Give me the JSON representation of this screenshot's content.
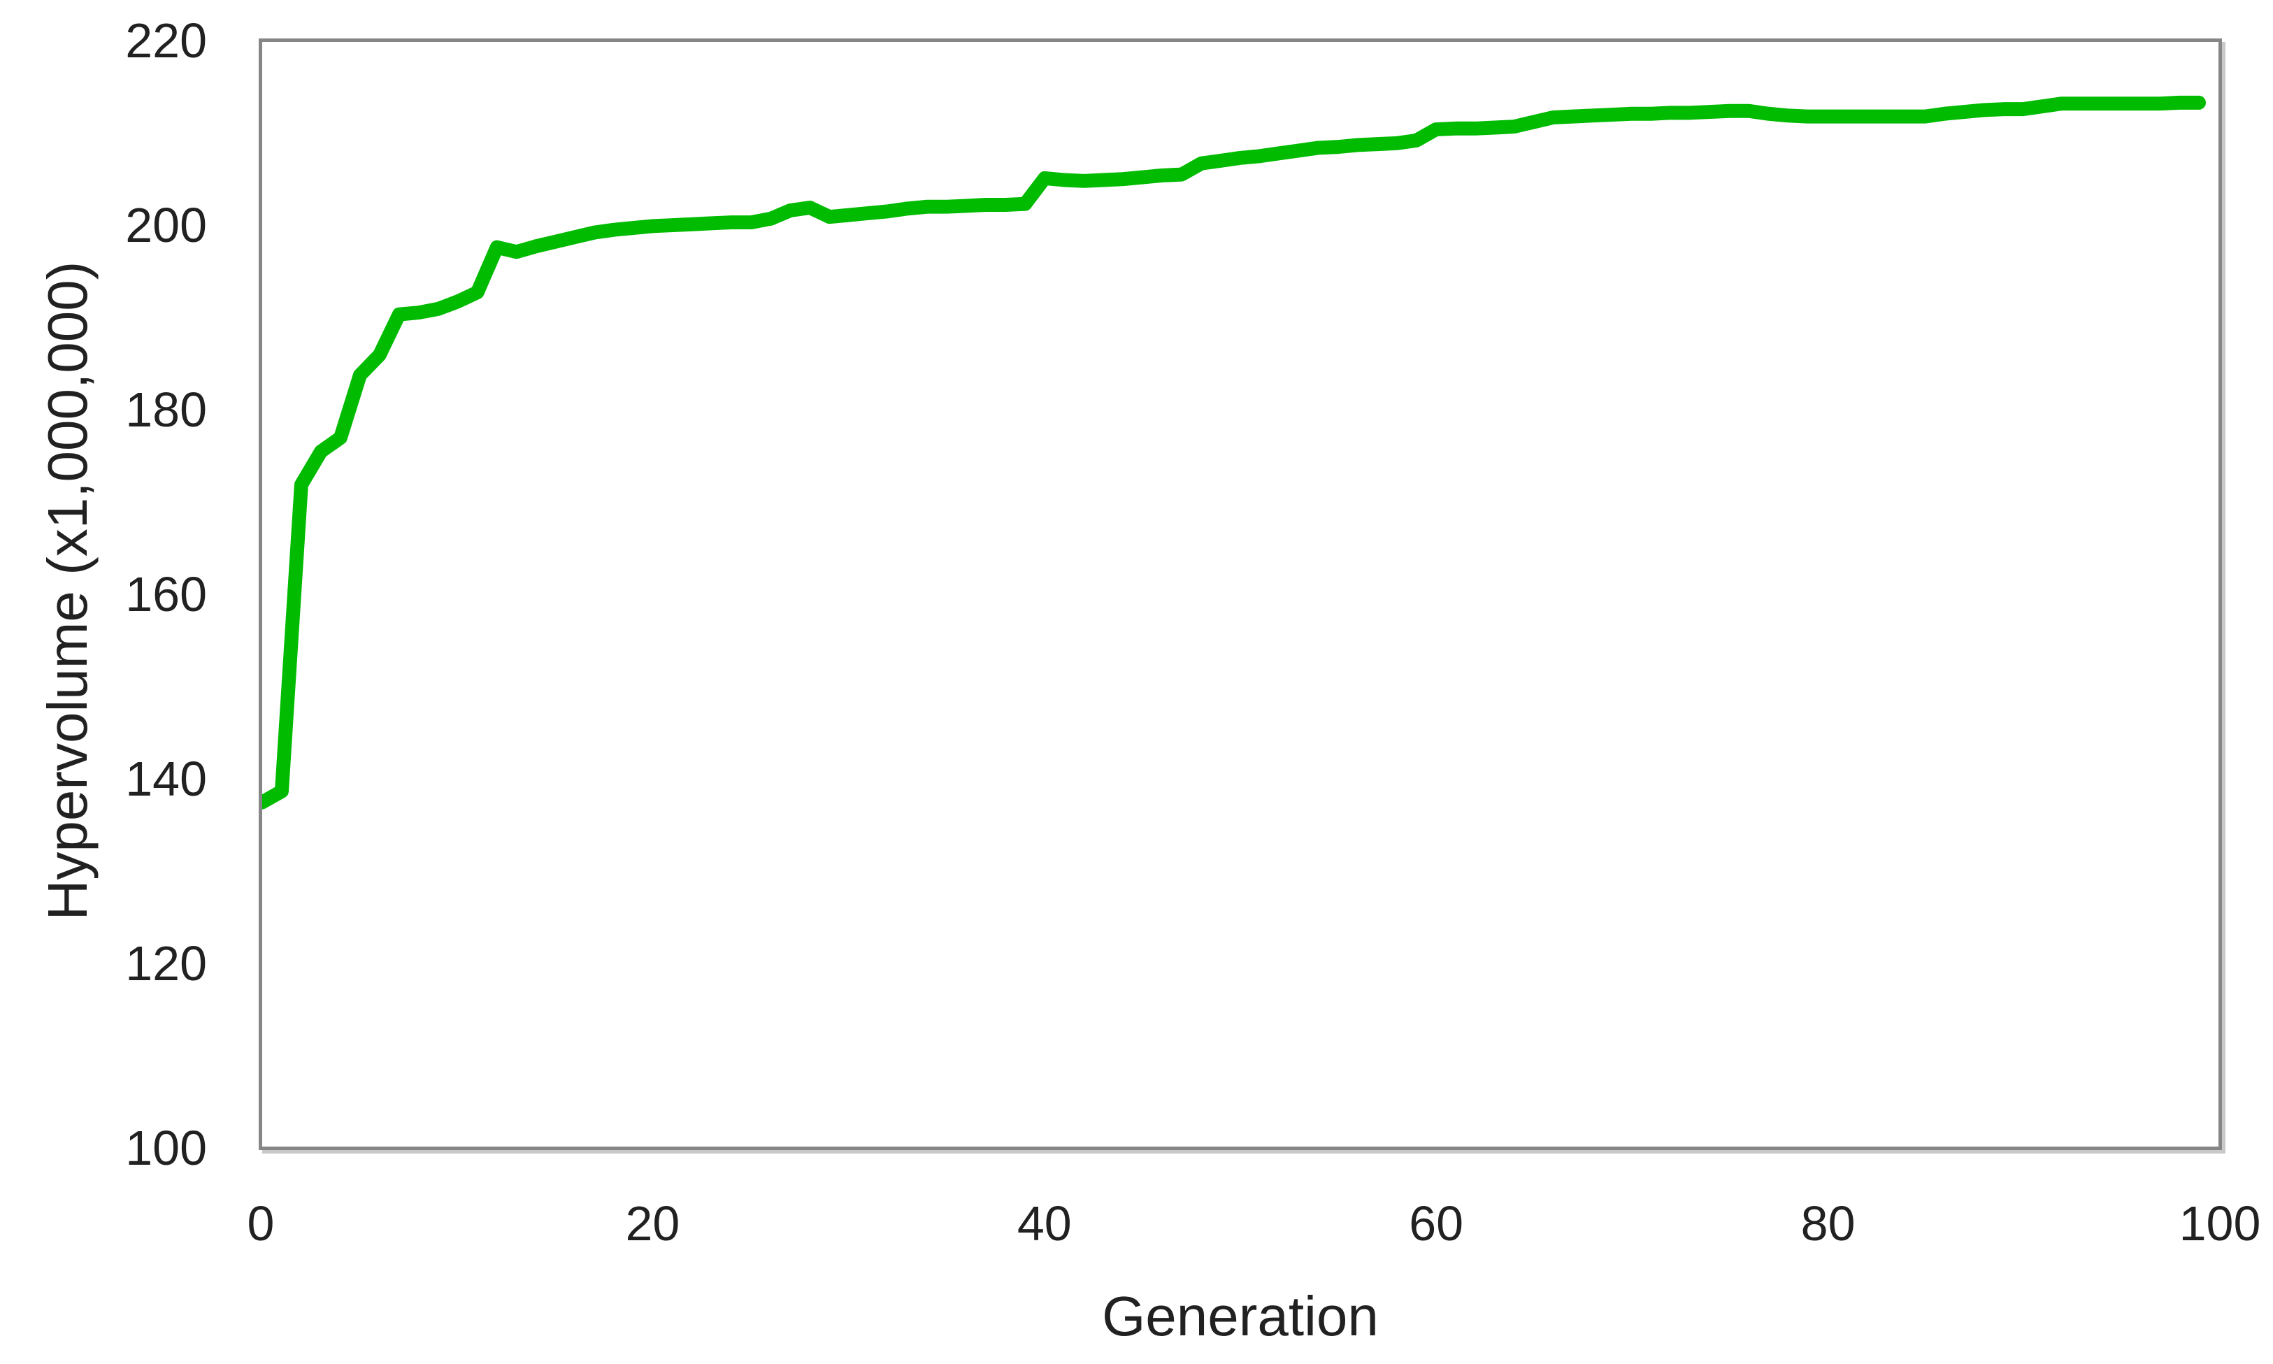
{
  "colors": {
    "line_green": "#00bb00",
    "axis_gray": "#868686",
    "text": "#212121",
    "background": "#ffffff"
  },
  "chart_data": {
    "type": "line",
    "title": "",
    "xlabel": "Generation",
    "ylabel": "Hypervolume (x1,000,000)",
    "xlim": [
      0,
      100
    ],
    "ylim": [
      100,
      220
    ],
    "x_ticks": [
      0,
      20,
      40,
      60,
      80,
      100
    ],
    "y_ticks": [
      220,
      200,
      180,
      160,
      140,
      120,
      100
    ],
    "grid": false,
    "legend_position": "none",
    "series": [
      {
        "name": "Hypervolume",
        "color": "#00bb00",
        "x": [
          0,
          1,
          2,
          3,
          4,
          5,
          6,
          7,
          8,
          9,
          10,
          11,
          12,
          13,
          14,
          15,
          16,
          17,
          18,
          19,
          20,
          21,
          22,
          23,
          24,
          25,
          26,
          27,
          28,
          29,
          30,
          31,
          32,
          33,
          34,
          35,
          36,
          37,
          38,
          39,
          40,
          41,
          42,
          43,
          44,
          45,
          46,
          47,
          48,
          49,
          50,
          51,
          52,
          53,
          54,
          55,
          56,
          57,
          58,
          59,
          60,
          61,
          62,
          63,
          64,
          65,
          66,
          67,
          68,
          69,
          70,
          71,
          72,
          73,
          74,
          75,
          76,
          77,
          78,
          79,
          80,
          81,
          82,
          83,
          84,
          85,
          86,
          87,
          88,
          89,
          90,
          91,
          92,
          93,
          94,
          95,
          96,
          97,
          98,
          99
        ],
        "values": [
          137.4,
          138.6,
          171.9,
          175.5,
          177.0,
          183.8,
          186.0,
          190.4,
          190.6,
          191.0,
          191.8,
          192.8,
          197.7,
          197.2,
          197.8,
          198.3,
          198.8,
          199.3,
          199.6,
          199.8,
          200.0,
          200.1,
          200.2,
          200.3,
          200.4,
          200.4,
          200.8,
          201.7,
          202.0,
          201.0,
          201.2,
          201.4,
          201.6,
          201.9,
          202.1,
          202.1,
          202.2,
          202.3,
          202.3,
          202.4,
          205.2,
          205.0,
          204.9,
          205.0,
          205.1,
          205.3,
          205.5,
          205.6,
          206.8,
          207.1,
          207.4,
          207.6,
          207.9,
          208.2,
          208.5,
          208.6,
          208.8,
          208.9,
          209.0,
          209.3,
          210.5,
          210.6,
          210.6,
          210.7,
          210.8,
          211.3,
          211.8,
          211.9,
          212.0,
          212.1,
          212.2,
          212.2,
          212.3,
          212.3,
          212.4,
          212.5,
          212.5,
          212.2,
          212.0,
          211.9,
          211.9,
          211.9,
          211.9,
          211.9,
          211.9,
          211.9,
          212.2,
          212.4,
          212.6,
          212.7,
          212.7,
          213.0,
          213.3,
          213.3,
          213.3,
          213.3,
          213.3,
          213.3,
          213.4,
          213.4
        ]
      }
    ]
  }
}
